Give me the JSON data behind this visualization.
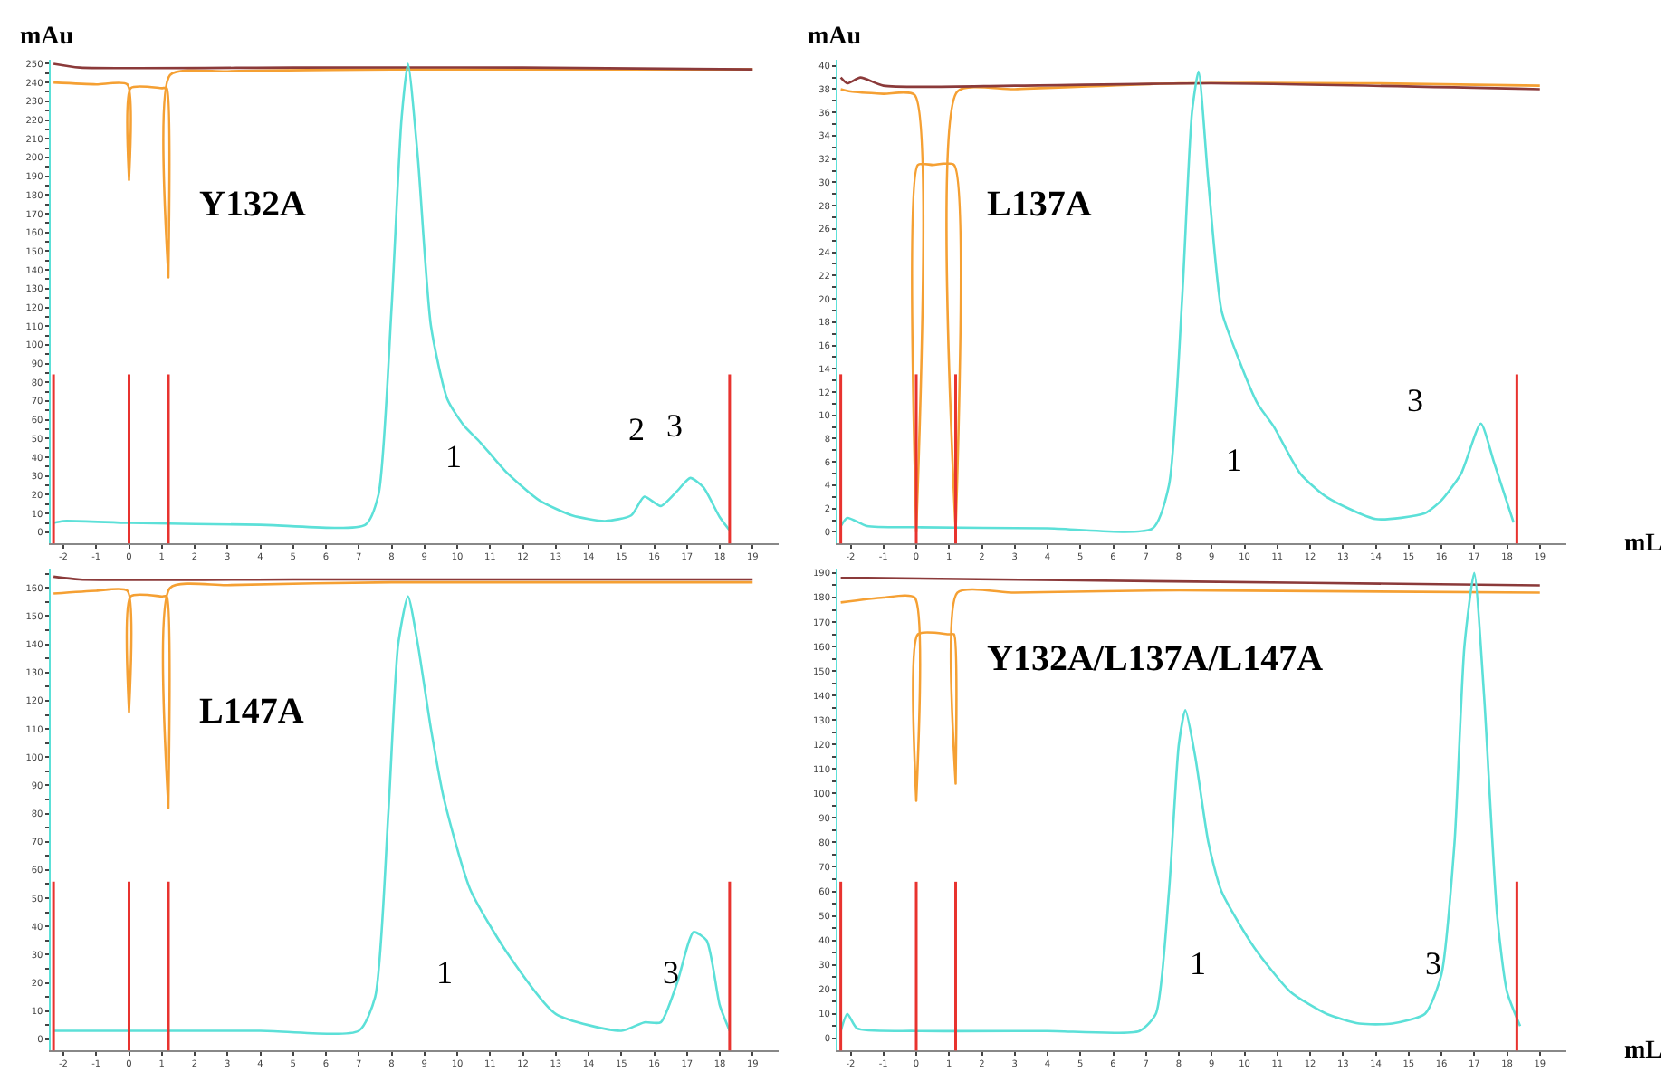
{
  "chart_data": [
    {
      "type": "line",
      "title": "Y132A",
      "ylabel": "mAu",
      "xlim": [
        -2.4,
        19.8
      ],
      "ylim": [
        -6,
        252
      ],
      "xticks": [
        -2,
        -1,
        0,
        1,
        2,
        3,
        4,
        5,
        6,
        7,
        8,
        9,
        10,
        11,
        12,
        13,
        14,
        15,
        16,
        17,
        18,
        19
      ],
      "yticks": [
        0,
        {
          "value": 5,
          "label": null
        },
        10,
        {
          "value": 15,
          "label": null
        },
        20,
        {
          "value": 25,
          "label": null
        },
        30,
        {
          "value": 35,
          "label": null
        },
        40,
        {
          "value": 45,
          "label": null
        },
        50,
        {
          "value": 55,
          "label": null
        },
        60,
        {
          "value": 65,
          "label": null
        },
        70,
        {
          "value": 75,
          "label": null
        },
        80,
        {
          "value": 85,
          "label": null
        },
        90,
        {
          "value": 95,
          "label": null
        },
        100,
        {
          "value": 105,
          "label": null
        },
        110,
        {
          "value": 115,
          "label": null
        },
        120,
        {
          "value": 125,
          "label": null
        },
        130,
        {
          "value": 135,
          "label": null
        },
        140,
        {
          "value": 145,
          "label": null
        },
        150,
        {
          "value": 155,
          "label": null
        },
        160,
        {
          "value": 165,
          "label": null
        },
        170,
        {
          "value": 175,
          "label": null
        },
        180,
        {
          "value": 185,
          "label": null
        },
        190,
        {
          "value": 195,
          "label": null
        },
        200,
        {
          "value": 205,
          "label": null
        },
        210,
        {
          "value": 215,
          "label": null
        },
        220,
        {
          "value": 225,
          "label": null
        },
        230,
        {
          "value": 235,
          "label": null
        },
        240,
        {
          "value": 245,
          "label": null
        },
        250
      ],
      "series": [
        {
          "color": "#f5a033",
          "x": [
            -2.3,
            -1,
            -0.05,
            0,
            0.05,
            1,
            1.15,
            1.2,
            1.25,
            3,
            8,
            19
          ],
          "values": [
            240,
            239,
            239,
            188,
            237,
            237,
            237,
            136,
            244,
            246,
            247,
            247
          ]
        },
        {
          "color": "#8b3a3a",
          "x": [
            -2.3,
            -1.5,
            5,
            12,
            19
          ],
          "values": [
            250,
            248,
            248,
            248,
            247
          ]
        },
        {
          "color": "#5ce0d8",
          "x": [
            -2.3,
            -2,
            0,
            4,
            7.2,
            7.6,
            8.0,
            8.3,
            8.5,
            8.8,
            9.2,
            9.7,
            10.2,
            10.7,
            11.5,
            12.5,
            13.5,
            14.5,
            15.3,
            15.7,
            16.2,
            16.7,
            17.1,
            17.5,
            18.0,
            18.3
          ],
          "values": [
            5,
            6,
            5,
            4,
            4,
            20,
            120,
            220,
            250,
            200,
            110,
            71,
            57,
            48,
            32,
            17,
            9,
            6,
            9,
            19,
            14,
            22,
            29,
            24,
            8,
            1
          ]
        }
      ],
      "ref_lines": [
        {
          "axis": "x",
          "value": -2.3,
          "color": "#e8332f"
        },
        {
          "axis": "x",
          "value": 0,
          "color": "#e8332f"
        },
        {
          "axis": "x",
          "value": 1.2,
          "color": "#e8332f"
        },
        {
          "axis": "x",
          "value": 18.3,
          "color": "#e8332f"
        }
      ],
      "annotations": [
        "1",
        "2",
        "3"
      ]
    },
    {
      "type": "line",
      "title": "L137A",
      "ylabel": "mAu",
      "xlabel": "mL",
      "xlim": [
        -2.4,
        19.8
      ],
      "ylim": [
        -1,
        40.5
      ],
      "xticks": [
        -2,
        -1,
        0,
        1,
        2,
        3,
        4,
        5,
        6,
        7,
        8,
        9,
        10,
        11,
        12,
        13,
        14,
        15,
        16,
        17,
        18,
        19
      ],
      "yticks": [
        0,
        {
          "value": 1,
          "label": null
        },
        2,
        {
          "value": 3,
          "label": null
        },
        4,
        {
          "value": 5,
          "label": null
        },
        6,
        {
          "value": 7,
          "label": null
        },
        8,
        {
          "value": 9,
          "label": null
        },
        10,
        {
          "value": 11,
          "label": null
        },
        12,
        {
          "value": 13,
          "label": null
        },
        14,
        {
          "value": 15,
          "label": null
        },
        16,
        {
          "value": 17,
          "label": null
        },
        18,
        {
          "value": 19,
          "label": null
        },
        20,
        {
          "value": 21,
          "label": null
        },
        22,
        {
          "value": 23,
          "label": null
        },
        24,
        {
          "value": 25,
          "label": null
        },
        26,
        {
          "value": 27,
          "label": null
        },
        28,
        {
          "value": 29,
          "label": null
        },
        30,
        {
          "value": 31,
          "label": null
        },
        32,
        {
          "value": 33,
          "label": null
        },
        34,
        {
          "value": 35,
          "label": null
        },
        36,
        {
          "value": 37,
          "label": null
        },
        38,
        {
          "value": 39,
          "label": null
        },
        40
      ],
      "series": [
        {
          "color": "#f5a033",
          "x": [
            -2.3,
            -2,
            -1,
            -0.05,
            0,
            0.05,
            0.5,
            1.15,
            1.2,
            1.25,
            3,
            8,
            14,
            19
          ],
          "values": [
            38,
            37.8,
            37.6,
            37.5,
            0,
            31.5,
            31.5,
            31.5,
            0,
            37.8,
            38,
            38.5,
            38.5,
            38.3
          ]
        },
        {
          "color": "#8b3a3a",
          "x": [
            -2.3,
            -2.1,
            -1.7,
            -1,
            3,
            9,
            19
          ],
          "values": [
            39,
            38.5,
            39,
            38.3,
            38.3,
            38.5,
            38
          ]
        },
        {
          "color": "#5ce0d8",
          "x": [
            -2.3,
            -2.1,
            -1.5,
            0,
            4,
            7.2,
            7.7,
            8.1,
            8.4,
            8.6,
            8.9,
            9.3,
            9.8,
            10.4,
            10.9,
            11.7,
            12.5,
            14,
            15.5,
            16,
            16.6,
            17.2,
            17.6,
            18.2
          ],
          "values": [
            0.5,
            1.2,
            0.5,
            0.4,
            0.3,
            0.3,
            4,
            20,
            36,
            39.5,
            30,
            19,
            15,
            11,
            9,
            5,
            3,
            1.1,
            1.6,
            2.7,
            5,
            9.3,
            6,
            0.8
          ]
        }
      ],
      "ref_lines": [
        {
          "axis": "x",
          "value": -2.3,
          "color": "#e8332f"
        },
        {
          "axis": "x",
          "value": 0,
          "color": "#e8332f"
        },
        {
          "axis": "x",
          "value": 1.2,
          "color": "#e8332f"
        },
        {
          "axis": "x",
          "value": 18.3,
          "color": "#e8332f"
        }
      ],
      "annotations": [
        "1",
        "3"
      ]
    },
    {
      "type": "line",
      "title": "L147A",
      "xlim": [
        -2.4,
        19.8
      ],
      "ylim": [
        -4,
        167
      ],
      "xticks": [
        -2,
        -1,
        0,
        1,
        2,
        3,
        4,
        5,
        6,
        7,
        8,
        9,
        10,
        11,
        12,
        13,
        14,
        15,
        16,
        17,
        18,
        19
      ],
      "yticks": [
        0,
        {
          "value": 5,
          "label": null
        },
        10,
        {
          "value": 15,
          "label": null
        },
        20,
        {
          "value": 25,
          "label": null
        },
        30,
        {
          "value": 35,
          "label": null
        },
        40,
        {
          "value": 45,
          "label": null
        },
        50,
        {
          "value": 55,
          "label": null
        },
        60,
        {
          "value": 65,
          "label": null
        },
        70,
        {
          "value": 75,
          "label": null
        },
        80,
        {
          "value": 85,
          "label": null
        },
        90,
        {
          "value": 95,
          "label": null
        },
        100,
        {
          "value": 105,
          "label": null
        },
        110,
        {
          "value": 115,
          "label": null
        },
        120,
        {
          "value": 125,
          "label": null
        },
        130,
        {
          "value": 135,
          "label": null
        },
        140,
        {
          "value": 145,
          "label": null
        },
        150,
        {
          "value": 155,
          "label": null
        },
        160,
        {
          "value": 165,
          "label": null
        }
      ],
      "series": [
        {
          "color": "#f5a033",
          "x": [
            -2.3,
            -1,
            -0.05,
            0,
            0.05,
            1,
            1.15,
            1.2,
            1.25,
            3,
            8,
            19
          ],
          "values": [
            158,
            159,
            159,
            116,
            157,
            157,
            157,
            82,
            160,
            161,
            162,
            162
          ]
        },
        {
          "color": "#8b3a3a",
          "x": [
            -2.3,
            -1.5,
            5,
            12,
            19
          ],
          "values": [
            164,
            163,
            163,
            163,
            163
          ]
        },
        {
          "color": "#5ce0d8",
          "x": [
            -2.3,
            0,
            4,
            7.0,
            7.5,
            7.9,
            8.2,
            8.5,
            8.8,
            9.2,
            9.6,
            10.4,
            11.5,
            13,
            15,
            15.7,
            16.2,
            16.7,
            17.2,
            17.6,
            18.0,
            18.3
          ],
          "values": [
            3,
            3,
            3,
            3,
            15,
            80,
            140,
            157,
            140,
            110,
            85,
            53,
            31,
            9,
            3,
            6,
            6,
            20,
            38,
            35,
            12,
            3
          ]
        }
      ],
      "ref_lines": [
        {
          "axis": "x",
          "value": -2.3,
          "color": "#e8332f"
        },
        {
          "axis": "x",
          "value": 0,
          "color": "#e8332f"
        },
        {
          "axis": "x",
          "value": 1.2,
          "color": "#e8332f"
        },
        {
          "axis": "x",
          "value": 18.3,
          "color": "#e8332f"
        }
      ],
      "annotations": [
        "1",
        "3"
      ]
    },
    {
      "type": "line",
      "title": "Y132A/L137A/L147A",
      "xlabel": "mL",
      "xlim": [
        -2.4,
        19.8
      ],
      "ylim": [
        -5,
        192
      ],
      "xticks": [
        -2,
        -1,
        0,
        1,
        2,
        3,
        4,
        5,
        6,
        7,
        8,
        9,
        10,
        11,
        12,
        13,
        14,
        15,
        16,
        17,
        18,
        19
      ],
      "yticks": [
        0,
        {
          "value": 5,
          "label": null
        },
        10,
        {
          "value": 15,
          "label": null
        },
        20,
        {
          "value": 25,
          "label": null
        },
        30,
        {
          "value": 35,
          "label": null
        },
        40,
        {
          "value": 45,
          "label": null
        },
        50,
        {
          "value": 55,
          "label": null
        },
        60,
        {
          "value": 65,
          "label": null
        },
        70,
        {
          "value": 75,
          "label": null
        },
        80,
        {
          "value": 85,
          "label": null
        },
        90,
        {
          "value": 95,
          "label": null
        },
        100,
        {
          "value": 105,
          "label": null
        },
        110,
        {
          "value": 115,
          "label": null
        },
        120,
        {
          "value": 125,
          "label": null
        },
        130,
        {
          "value": 135,
          "label": null
        },
        140,
        {
          "value": 145,
          "label": null
        },
        150,
        {
          "value": 155,
          "label": null
        },
        160,
        {
          "value": 165,
          "label": null
        },
        170,
        {
          "value": 175,
          "label": null
        },
        180,
        {
          "value": 185,
          "label": null
        },
        190
      ],
      "series": [
        {
          "color": "#f5a033",
          "x": [
            -2.3,
            -1,
            -0.05,
            0,
            0.05,
            1,
            1.15,
            1.2,
            1.25,
            3,
            8,
            19
          ],
          "values": [
            178,
            180,
            180,
            97,
            165,
            165,
            165,
            104,
            182,
            182,
            183,
            182
          ]
        },
        {
          "color": "#8b3a3a",
          "x": [
            -2.3,
            -1.5,
            5,
            12,
            19
          ],
          "values": [
            188,
            188,
            187,
            186,
            185
          ]
        },
        {
          "color": "#5ce0d8",
          "x": [
            -2.3,
            -2.1,
            -1.8,
            0,
            4,
            6.8,
            7.3,
            7.7,
            8.0,
            8.2,
            8.5,
            8.9,
            9.3,
            10.3,
            11.4,
            12.5,
            13.5,
            14.5,
            15.5,
            16.0,
            16.4,
            16.7,
            17.0,
            17.3,
            17.7,
            18.0,
            18.4
          ],
          "values": [
            3,
            10,
            4,
            3,
            3,
            3,
            10,
            60,
            120,
            134,
            115,
            80,
            60,
            37,
            19,
            10,
            6,
            6,
            10,
            26,
            80,
            160,
            190,
            140,
            50,
            19,
            5
          ]
        }
      ],
      "ref_lines": [
        {
          "axis": "x",
          "value": -2.3,
          "color": "#e8332f"
        },
        {
          "axis": "x",
          "value": 0,
          "color": "#e8332f"
        },
        {
          "axis": "x",
          "value": 1.2,
          "color": "#e8332f"
        },
        {
          "axis": "x",
          "value": 18.3,
          "color": "#e8332f"
        }
      ],
      "annotations": [
        "1",
        "3"
      ]
    }
  ]
}
